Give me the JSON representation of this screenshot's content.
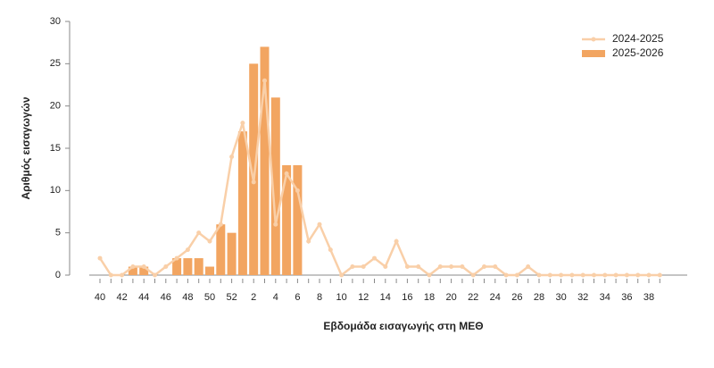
{
  "chart_data": {
    "type": "bar_line",
    "x_label": "Εβδομάδα εισαγωγής στη ΜΕΘ",
    "y_label": "Αριθμός εισαγωγών",
    "categories": [
      "40",
      null,
      "42",
      null,
      "44",
      null,
      "46",
      null,
      "48",
      null,
      "50",
      null,
      "52",
      null,
      "2",
      null,
      "4",
      null,
      "6",
      null,
      "8",
      null,
      "10",
      null,
      "12",
      null,
      "14",
      null,
      "16",
      null,
      "18",
      null,
      "20",
      null,
      "22",
      null,
      "24",
      null,
      "26",
      null,
      "28",
      null,
      "30",
      null,
      "32",
      null,
      "34",
      null,
      "36",
      null,
      "38",
      null
    ],
    "series": [
      {
        "name": "2024-2025",
        "kind": "line",
        "color": "#f9cfa8",
        "values": [
          2,
          0,
          0,
          1,
          1,
          0,
          1,
          2,
          3,
          5,
          4,
          6,
          14,
          18,
          11,
          23,
          6,
          12,
          10,
          4,
          6,
          3,
          0,
          1,
          1,
          2,
          1,
          4,
          1,
          1,
          0,
          1,
          1,
          1,
          0,
          1,
          1,
          0,
          0,
          1,
          0,
          0,
          0,
          0,
          0,
          0,
          0,
          0,
          0,
          0,
          0,
          0
        ]
      },
      {
        "name": "2025-2026",
        "kind": "bar",
        "color": "#f2a561",
        "values": [
          0,
          0,
          0,
          1,
          1,
          0,
          0,
          2,
          2,
          2,
          1,
          6,
          5,
          17,
          25,
          27,
          21,
          13,
          13,
          null,
          null,
          null,
          null,
          null,
          null,
          null,
          null,
          null,
          null,
          null,
          null,
          null,
          null,
          null,
          null,
          null,
          null,
          null,
          null,
          null,
          null,
          null,
          null,
          null,
          null,
          null,
          null,
          null,
          null,
          null,
          null,
          null
        ]
      }
    ],
    "ylim": [
      0,
      30
    ],
    "yticks": [
      0,
      5,
      10,
      15,
      20,
      25,
      30
    ],
    "legend": "top-right"
  }
}
